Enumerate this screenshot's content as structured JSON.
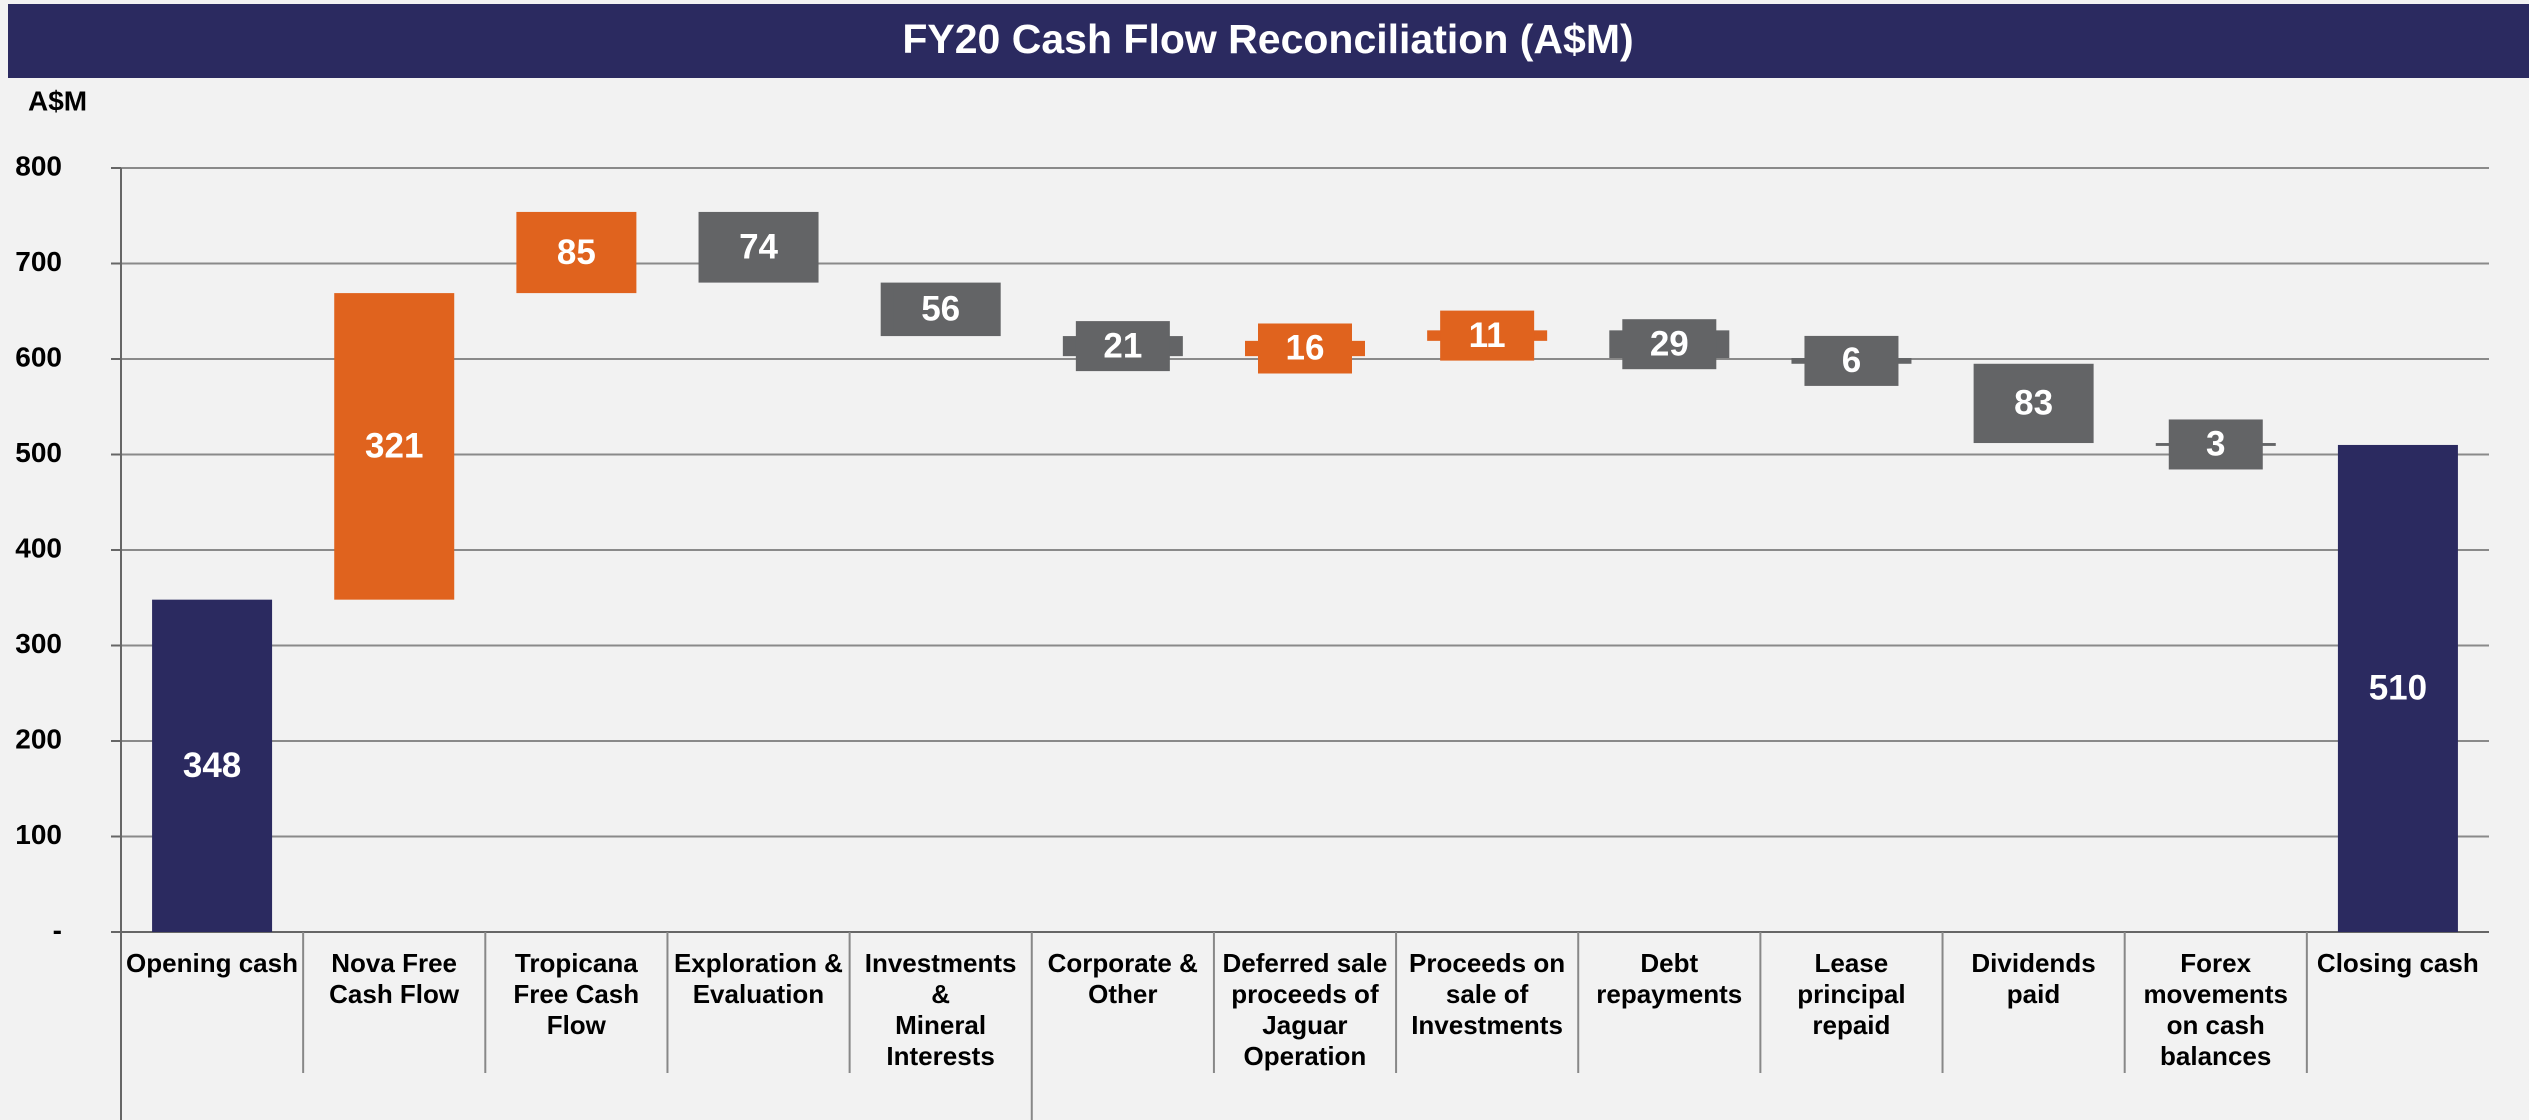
{
  "chart_data": {
    "type": "waterfall",
    "title": "FY20 Cash Flow Reconciliation (A$M)",
    "y_label": "A$M",
    "categories": [
      "Opening cash",
      "Nova Free\nCash Flow",
      "Tropicana\nFree Cash\nFlow",
      "Exploration &\nEvaluation",
      "Investments\n&\nMineral\nInterests",
      "Corporate &\nOther",
      "Deferred sale\nproceeds of\nJaguar\nOperation",
      "Proceeds on\nsale of\nInvestments",
      "Debt\nrepayments",
      "Lease\nprincipal\nrepaid",
      "Dividends\npaid",
      "Forex\nmovements\non cash\nbalances",
      "Closing cash"
    ],
    "values": [
      348,
      321,
      85,
      -74,
      -56,
      -21,
      16,
      11,
      -29,
      -6,
      -83,
      -3,
      510
    ],
    "value_labels": [
      "348",
      "321",
      "85",
      "74",
      "56",
      "21",
      "16",
      "11",
      "29",
      "6",
      "83",
      "3",
      "510"
    ],
    "colors": [
      "#2b2a60",
      "#e0631e",
      "#e0631e",
      "#636466",
      "#636466",
      "#636466",
      "#e0631e",
      "#e0631e",
      "#636466",
      "#636466",
      "#636466",
      "#636466",
      "#2b2a60"
    ],
    "ylim": [
      0,
      800
    ],
    "yticks": [
      {
        "value": 0,
        "label": "-"
      },
      100,
      200,
      300,
      400,
      500,
      600,
      700,
      800
    ],
    "grid": true
  }
}
